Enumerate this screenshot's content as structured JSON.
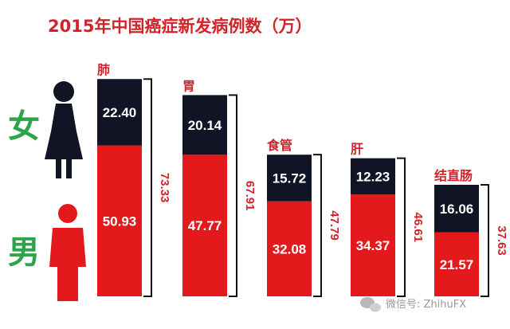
{
  "chart_data": {
    "type": "bar",
    "stacked": true,
    "title": "2015年中国癌症新发病例数（万）",
    "categories": [
      "肺",
      "胃",
      "食管",
      "肝",
      "结直肠"
    ],
    "series": [
      {
        "name": "女",
        "values": [
          22.4,
          20.14,
          15.72,
          12.23,
          16.06
        ]
      },
      {
        "name": "男",
        "values": [
          50.93,
          47.77,
          32.08,
          34.37,
          21.57
        ]
      }
    ],
    "value_labels": {
      "female": [
        "22.40",
        "20.14",
        "15.72",
        "12.23",
        "16.06"
      ],
      "male": [
        "50.93",
        "47.77",
        "32.08",
        "34.37",
        "21.57"
      ]
    },
    "totals": [
      "73.33",
      "67.91",
      "47.79",
      "46.61",
      "37.63"
    ],
    "colors": {
      "female": "#111424",
      "male": "#e3191c",
      "text": "#d2232a",
      "sex_label": "#2ea44a"
    },
    "legend": {
      "female_label": "女",
      "male_label": "男",
      "placement": "left"
    }
  },
  "watermark": {
    "icon": "wechat-icon",
    "text": "微信号: ZhihuFX"
  }
}
